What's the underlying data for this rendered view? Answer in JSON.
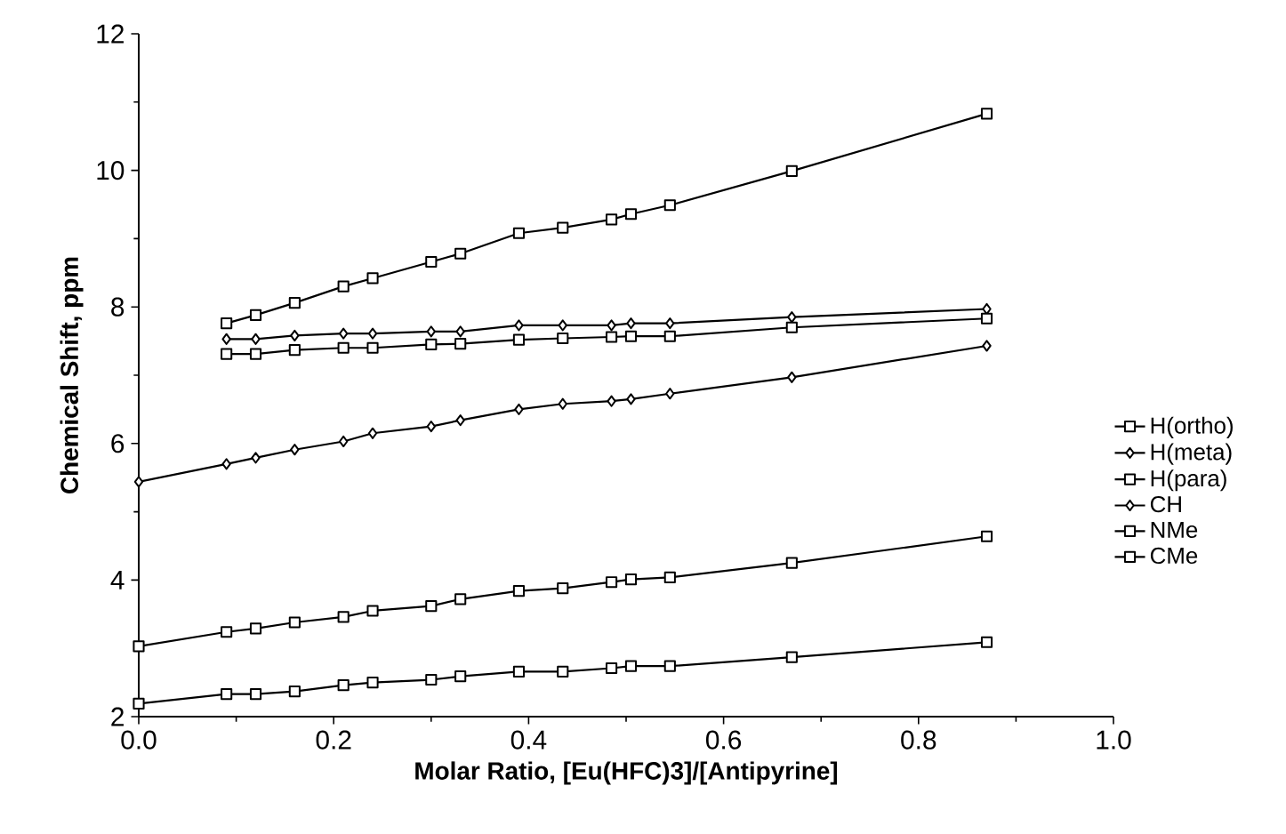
{
  "chart_data": {
    "type": "line",
    "xlabel": "Molar Ratio, [Eu(HFC)3]/[Antipyrine]",
    "ylabel": "Chemical Shift, ppm",
    "xlim": [
      0,
      1
    ],
    "ylim": [
      2,
      12
    ],
    "xticks": [
      {
        "value": 0,
        "label": "0.0"
      },
      {
        "value": 0.2,
        "label": "0.2"
      },
      {
        "value": 0.4,
        "label": "0.4"
      },
      {
        "value": 0.6,
        "label": "0.6"
      },
      {
        "value": 0.8,
        "label": "0.8"
      },
      {
        "value": 1,
        "label": "1.0"
      }
    ],
    "yticks": [
      2,
      4,
      6,
      8,
      10,
      12
    ],
    "legend": "right",
    "grid": false,
    "line_style": "solid",
    "series": [
      {
        "name": "H(ortho)",
        "color": "#000000",
        "marker": "square",
        "x": [
          0.09,
          0.12,
          0.16,
          0.21,
          0.24,
          0.3,
          0.33,
          0.39,
          0.435,
          0.485,
          0.505,
          0.545,
          0.67,
          0.87
        ],
        "values": [
          7.76,
          7.88,
          8.06,
          8.3,
          8.42,
          8.66,
          8.78,
          9.08,
          9.16,
          9.28,
          9.36,
          9.49,
          9.99,
          10.83
        ]
      },
      {
        "name": "H(meta)",
        "color": "#000000",
        "marker": "diamond",
        "x": [
          0.09,
          0.12,
          0.16,
          0.21,
          0.24,
          0.3,
          0.33,
          0.39,
          0.435,
          0.485,
          0.505,
          0.545,
          0.67,
          0.87
        ],
        "values": [
          7.53,
          7.53,
          7.58,
          7.61,
          7.61,
          7.64,
          7.64,
          7.73,
          7.73,
          7.73,
          7.76,
          7.76,
          7.85,
          7.97
        ]
      },
      {
        "name": "H(para)",
        "color": "#000000",
        "marker": "square",
        "x": [
          0.09,
          0.12,
          0.16,
          0.21,
          0.24,
          0.3,
          0.33,
          0.39,
          0.435,
          0.485,
          0.505,
          0.545,
          0.67,
          0.87
        ],
        "values": [
          7.31,
          7.31,
          7.37,
          7.4,
          7.4,
          7.45,
          7.46,
          7.52,
          7.54,
          7.56,
          7.57,
          7.57,
          7.7,
          7.83
        ]
      },
      {
        "name": "CH",
        "color": "#000000",
        "marker": "diamond",
        "x": [
          0,
          0.09,
          0.12,
          0.16,
          0.21,
          0.24,
          0.3,
          0.33,
          0.39,
          0.435,
          0.485,
          0.505,
          0.545,
          0.67,
          0.87
        ],
        "values": [
          5.44,
          5.7,
          5.79,
          5.91,
          6.03,
          6.15,
          6.25,
          6.34,
          6.5,
          6.58,
          6.62,
          6.65,
          6.73,
          6.97,
          7.43
        ]
      },
      {
        "name": "NMe",
        "color": "#000000",
        "marker": "square",
        "x": [
          0,
          0.09,
          0.12,
          0.16,
          0.21,
          0.24,
          0.3,
          0.33,
          0.39,
          0.435,
          0.485,
          0.505,
          0.545,
          0.67,
          0.87
        ],
        "values": [
          3.03,
          3.24,
          3.29,
          3.38,
          3.46,
          3.55,
          3.62,
          3.72,
          3.84,
          3.88,
          3.97,
          4.01,
          4.04,
          4.25,
          4.64
        ]
      },
      {
        "name": "CMe",
        "color": "#000000",
        "marker": "square",
        "x": [
          0,
          0.09,
          0.12,
          0.16,
          0.21,
          0.24,
          0.3,
          0.33,
          0.39,
          0.435,
          0.485,
          0.505,
          0.545,
          0.67,
          0.87
        ],
        "values": [
          2.19,
          2.33,
          2.33,
          2.37,
          2.46,
          2.5,
          2.54,
          2.59,
          2.66,
          2.66,
          2.71,
          2.74,
          2.74,
          2.87,
          3.09
        ]
      }
    ]
  }
}
